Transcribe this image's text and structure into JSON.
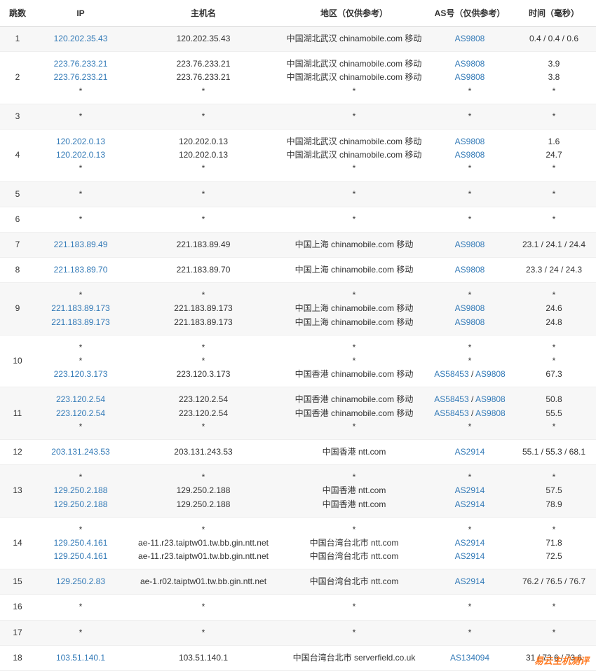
{
  "header": {
    "hop": "跳数",
    "ip": "IP",
    "hostname": "主机名",
    "region": "地区（仅供参考）",
    "as": "AS号（仅供参考）",
    "time": "时间（毫秒）"
  },
  "link_color": "#337ab7",
  "watermark": "易云主机测评",
  "rows": [
    {
      "hop": "1",
      "lines": [
        {
          "ip": "120.202.35.43",
          "host": "120.202.35.43",
          "region": "中国湖北武汉 chinamobile.com 移动",
          "as": [
            {
              "t": "AS9808",
              "l": true
            }
          ],
          "time": "0.4 / 0.4 / 0.6"
        }
      ]
    },
    {
      "hop": "2",
      "lines": [
        {
          "ip": "223.76.233.21",
          "host": "223.76.233.21",
          "region": "中国湖北武汉 chinamobile.com 移动",
          "as": [
            {
              "t": "AS9808",
              "l": true
            }
          ],
          "time": "3.9"
        },
        {
          "ip": "223.76.233.21",
          "host": "223.76.233.21",
          "region": "中国湖北武汉 chinamobile.com 移动",
          "as": [
            {
              "t": "AS9808",
              "l": true
            }
          ],
          "time": "3.8"
        },
        {
          "ip": "*",
          "host": "*",
          "region": "*",
          "as": [
            {
              "t": "*",
              "l": false
            }
          ],
          "time": "*",
          "plain": true
        }
      ]
    },
    {
      "hop": "3",
      "lines": [
        {
          "ip": "*",
          "host": "*",
          "region": "*",
          "as": [
            {
              "t": "*",
              "l": false
            }
          ],
          "time": "*",
          "plain": true
        }
      ]
    },
    {
      "hop": "4",
      "lines": [
        {
          "ip": "120.202.0.13",
          "host": "120.202.0.13",
          "region": "中国湖北武汉 chinamobile.com 移动",
          "as": [
            {
              "t": "AS9808",
              "l": true
            }
          ],
          "time": "1.6"
        },
        {
          "ip": "120.202.0.13",
          "host": "120.202.0.13",
          "region": "中国湖北武汉 chinamobile.com 移动",
          "as": [
            {
              "t": "AS9808",
              "l": true
            }
          ],
          "time": "24.7"
        },
        {
          "ip": "*",
          "host": "*",
          "region": "*",
          "as": [
            {
              "t": "*",
              "l": false
            }
          ],
          "time": "*",
          "plain": true
        }
      ]
    },
    {
      "hop": "5",
      "lines": [
        {
          "ip": "*",
          "host": "*",
          "region": "*",
          "as": [
            {
              "t": "*",
              "l": false
            }
          ],
          "time": "*",
          "plain": true
        }
      ]
    },
    {
      "hop": "6",
      "lines": [
        {
          "ip": "*",
          "host": "*",
          "region": "*",
          "as": [
            {
              "t": "*",
              "l": false
            }
          ],
          "time": "*",
          "plain": true
        }
      ]
    },
    {
      "hop": "7",
      "lines": [
        {
          "ip": "221.183.89.49",
          "host": "221.183.89.49",
          "region": "中国上海 chinamobile.com 移动",
          "as": [
            {
              "t": "AS9808",
              "l": true
            }
          ],
          "time": "23.1 / 24.1 / 24.4"
        }
      ]
    },
    {
      "hop": "8",
      "lines": [
        {
          "ip": "221.183.89.70",
          "host": "221.183.89.70",
          "region": "中国上海 chinamobile.com 移动",
          "as": [
            {
              "t": "AS9808",
              "l": true
            }
          ],
          "time": "23.3 / 24 / 24.3"
        }
      ]
    },
    {
      "hop": "9",
      "lines": [
        {
          "ip": "*",
          "host": "*",
          "region": "*",
          "as": [
            {
              "t": "*",
              "l": false
            }
          ],
          "time": "*",
          "plain": true
        },
        {
          "ip": "221.183.89.173",
          "host": "221.183.89.173",
          "region": "中国上海 chinamobile.com 移动",
          "as": [
            {
              "t": "AS9808",
              "l": true
            }
          ],
          "time": "24.6"
        },
        {
          "ip": "221.183.89.173",
          "host": "221.183.89.173",
          "region": "中国上海 chinamobile.com 移动",
          "as": [
            {
              "t": "AS9808",
              "l": true
            }
          ],
          "time": "24.8"
        }
      ]
    },
    {
      "hop": "10",
      "lines": [
        {
          "ip": "*",
          "host": "*",
          "region": "*",
          "as": [
            {
              "t": "*",
              "l": false
            }
          ],
          "time": "*",
          "plain": true
        },
        {
          "ip": "*",
          "host": "*",
          "region": "*",
          "as": [
            {
              "t": "*",
              "l": false
            }
          ],
          "time": "*",
          "plain": true
        },
        {
          "ip": "223.120.3.173",
          "host": "223.120.3.173",
          "region": "中国香港 chinamobile.com 移动",
          "as": [
            {
              "t": "AS58453",
              "l": true
            },
            {
              "t": " / ",
              "l": false
            },
            {
              "t": "AS9808",
              "l": true
            }
          ],
          "time": "67.3"
        }
      ]
    },
    {
      "hop": "11",
      "lines": [
        {
          "ip": "223.120.2.54",
          "host": "223.120.2.54",
          "region": "中国香港 chinamobile.com 移动",
          "as": [
            {
              "t": "AS58453",
              "l": true
            },
            {
              "t": " / ",
              "l": false
            },
            {
              "t": "AS9808",
              "l": true
            }
          ],
          "time": "50.8"
        },
        {
          "ip": "223.120.2.54",
          "host": "223.120.2.54",
          "region": "中国香港 chinamobile.com 移动",
          "as": [
            {
              "t": "AS58453",
              "l": true
            },
            {
              "t": " / ",
              "l": false
            },
            {
              "t": "AS9808",
              "l": true
            }
          ],
          "time": "55.5"
        },
        {
          "ip": "*",
          "host": "*",
          "region": "*",
          "as": [
            {
              "t": "*",
              "l": false
            }
          ],
          "time": "*",
          "plain": true
        }
      ]
    },
    {
      "hop": "12",
      "lines": [
        {
          "ip": "203.131.243.53",
          "host": "203.131.243.53",
          "region": "中国香港 ntt.com",
          "as": [
            {
              "t": "AS2914",
              "l": true
            }
          ],
          "time": "55.1 / 55.3 / 68.1"
        }
      ]
    },
    {
      "hop": "13",
      "lines": [
        {
          "ip": "*",
          "host": "*",
          "region": "*",
          "as": [
            {
              "t": "*",
              "l": false
            }
          ],
          "time": "*",
          "plain": true
        },
        {
          "ip": "129.250.2.188",
          "host": "129.250.2.188",
          "region": "中国香港 ntt.com",
          "as": [
            {
              "t": "AS2914",
              "l": true
            }
          ],
          "time": "57.5"
        },
        {
          "ip": "129.250.2.188",
          "host": "129.250.2.188",
          "region": "中国香港 ntt.com",
          "as": [
            {
              "t": "AS2914",
              "l": true
            }
          ],
          "time": "78.9"
        }
      ]
    },
    {
      "hop": "14",
      "lines": [
        {
          "ip": "*",
          "host": "*",
          "region": "*",
          "as": [
            {
              "t": "*",
              "l": false
            }
          ],
          "time": "*",
          "plain": true
        },
        {
          "ip": "129.250.4.161",
          "host": "ae-11.r23.taiptw01.tw.bb.gin.ntt.net",
          "region": "中国台湾台北市 ntt.com",
          "as": [
            {
              "t": "AS2914",
              "l": true
            }
          ],
          "time": "71.8"
        },
        {
          "ip": "129.250.4.161",
          "host": "ae-11.r23.taiptw01.tw.bb.gin.ntt.net",
          "region": "中国台湾台北市 ntt.com",
          "as": [
            {
              "t": "AS2914",
              "l": true
            }
          ],
          "time": "72.5"
        }
      ]
    },
    {
      "hop": "15",
      "lines": [
        {
          "ip": "129.250.2.83",
          "host": "ae-1.r02.taiptw01.tw.bb.gin.ntt.net",
          "region": "中国台湾台北市 ntt.com",
          "as": [
            {
              "t": "AS2914",
              "l": true
            }
          ],
          "time": "76.2 / 76.5 / 76.7"
        }
      ]
    },
    {
      "hop": "16",
      "lines": [
        {
          "ip": "*",
          "host": "*",
          "region": "*",
          "as": [
            {
              "t": "*",
              "l": false
            }
          ],
          "time": "*",
          "plain": true
        }
      ]
    },
    {
      "hop": "17",
      "lines": [
        {
          "ip": "*",
          "host": "*",
          "region": "*",
          "as": [
            {
              "t": "*",
              "l": false
            }
          ],
          "time": "*",
          "plain": true
        }
      ]
    },
    {
      "hop": "18",
      "lines": [
        {
          "ip": "103.51.140.1",
          "host": "103.51.140.1",
          "region": "中国台湾台北市 serverfield.co.uk",
          "as": [
            {
              "t": "AS134094",
              "l": true
            }
          ],
          "time": "31 / 73.6 / 73.6"
        }
      ]
    }
  ]
}
